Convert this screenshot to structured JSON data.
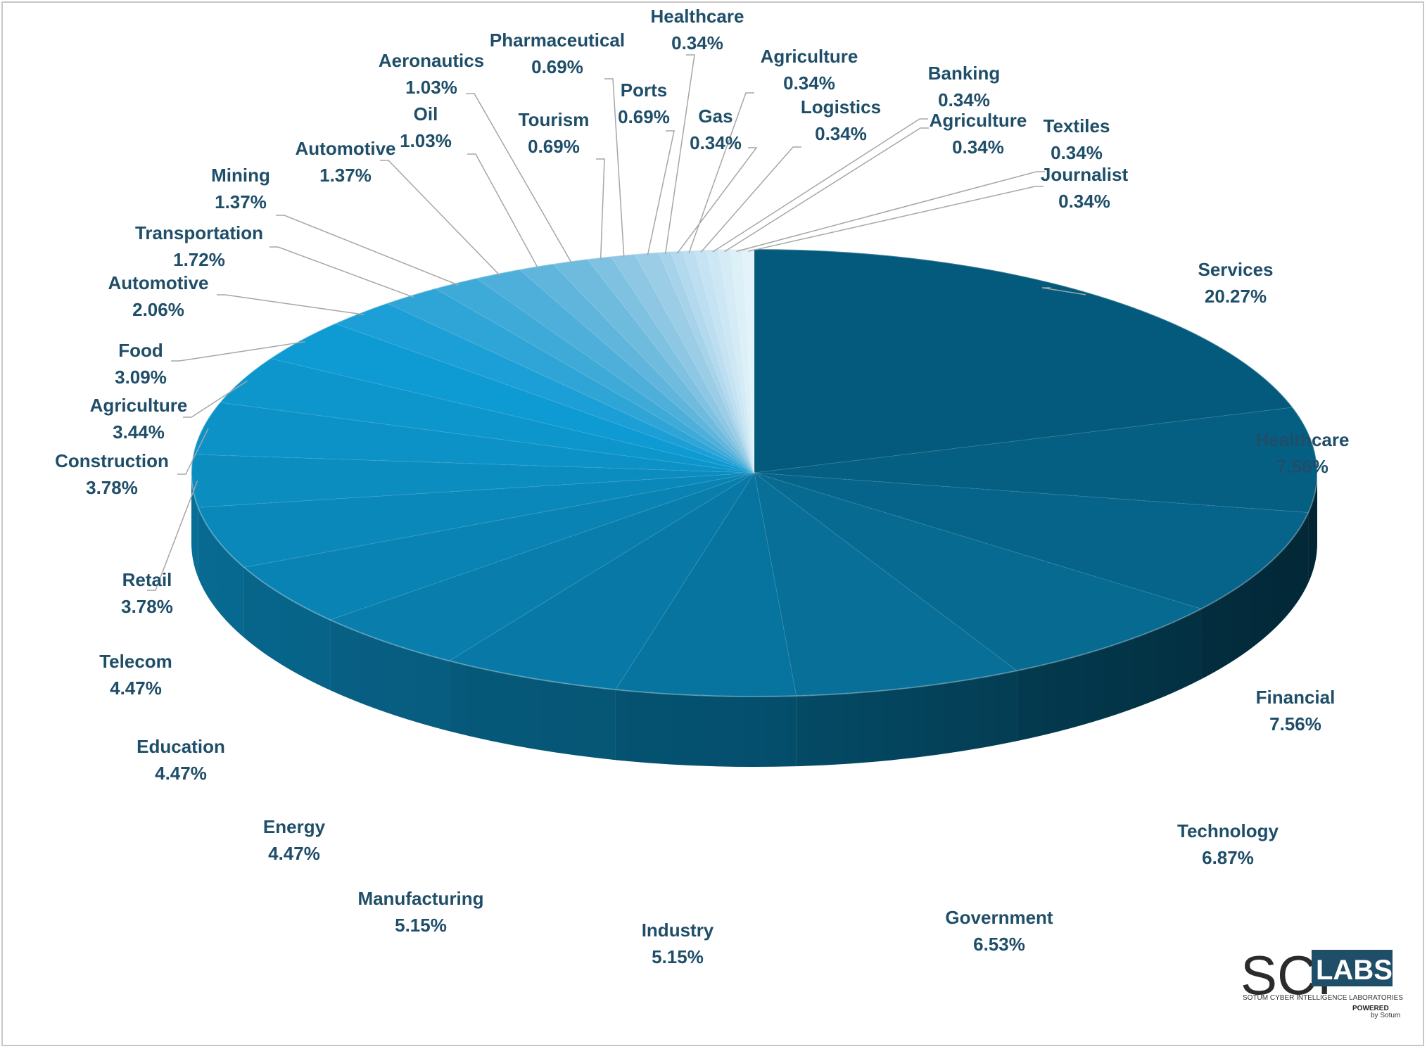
{
  "chart_data": {
    "type": "pie",
    "style": "3d",
    "legend": "none",
    "slices": [
      {
        "label": "Services",
        "value_text": "20.27%",
        "value": 20.27,
        "color": "#045a7c"
      },
      {
        "label": "Healthcare",
        "value_text": "7.56%",
        "value": 7.56,
        "color": "#055f83"
      },
      {
        "label": "Financial",
        "value_text": "7.56%",
        "value": 7.56,
        "color": "#06648a"
      },
      {
        "label": "Technology",
        "value_text": "6.87%",
        "value": 6.87,
        "color": "#066a91"
      },
      {
        "label": "Government",
        "value_text": "6.53%",
        "value": 6.53,
        "color": "#076f98"
      },
      {
        "label": "Industry",
        "value_text": "5.15%",
        "value": 5.15,
        "color": "#07749f"
      },
      {
        "label": "Manufacturing",
        "value_text": "5.15%",
        "value": 5.15,
        "color": "#0879a6"
      },
      {
        "label": "Energy",
        "value_text": "4.47%",
        "value": 4.47,
        "color": "#097ead"
      },
      {
        "label": "Education",
        "value_text": "4.47%",
        "value": 4.47,
        "color": "#0983b3"
      },
      {
        "label": "Telecom",
        "value_text": "4.47%",
        "value": 4.47,
        "color": "#0a88ba"
      },
      {
        "label": "Retail",
        "value_text": "3.78%",
        "value": 3.78,
        "color": "#0b8dc0"
      },
      {
        "label": "Construction",
        "value_text": "3.78%",
        "value": 3.78,
        "color": "#0c92c6"
      },
      {
        "label": "Agriculture",
        "value_text": "3.44%",
        "value": 3.44,
        "color": "#0d96cc"
      },
      {
        "label": "Food",
        "value_text": "3.09%",
        "value": 3.09,
        "color": "#0e9ad2"
      },
      {
        "label": "Automotive",
        "value_text": "2.06%",
        "value": 2.06,
        "color": "#1c9fd6"
      },
      {
        "label": "Transportation",
        "value_text": "1.72%",
        "value": 1.72,
        "color": "#2ea5d6"
      },
      {
        "label": "Mining",
        "value_text": "1.37%",
        "value": 1.37,
        "color": "#3eaad7"
      },
      {
        "label": "Automotive",
        "value_text": "1.37%",
        "value": 1.37,
        "color": "#4eafda"
      },
      {
        "label": "Oil",
        "value_text": "1.03%",
        "value": 1.03,
        "color": "#5fb5dc"
      },
      {
        "label": "Aeronautics",
        "value_text": "1.03%",
        "value": 1.03,
        "color": "#6fbbde"
      },
      {
        "label": "Tourism",
        "value_text": "0.69%",
        "value": 0.69,
        "color": "#7fc1e1"
      },
      {
        "label": "Pharmaceutical",
        "value_text": "0.69%",
        "value": 0.69,
        "color": "#8dc7e4"
      },
      {
        "label": "Ports",
        "value_text": "0.69%",
        "value": 0.69,
        "color": "#9bcde7"
      },
      {
        "label": "Healthcare",
        "value_text": "0.34%",
        "value": 0.34,
        "color": "#a7d3ea"
      },
      {
        "label": "Gas",
        "value_text": "0.34%",
        "value": 0.34,
        "color": "#b2d9ed"
      },
      {
        "label": "Agriculture",
        "value_text": "0.34%",
        "value": 0.34,
        "color": "#bcdef0"
      },
      {
        "label": "Logistics",
        "value_text": "0.34%",
        "value": 0.34,
        "color": "#c5e3f2"
      },
      {
        "label": "Banking",
        "value_text": "0.34%",
        "value": 0.34,
        "color": "#cde7f4"
      },
      {
        "label": "Agriculture",
        "value_text": "0.34%",
        "value": 0.34,
        "color": "#d5ebf6"
      },
      {
        "label": "Textiles",
        "value_text": "0.34%",
        "value": 0.34,
        "color": "#dcf0f8"
      },
      {
        "label": "Journalist",
        "value_text": "0.34%",
        "value": 0.34,
        "color": "#e4f3fa"
      }
    ]
  },
  "logo": {
    "sci": "SCI",
    "labs": "LABS",
    "subtitle": "SOTUM CYBER INTELLIGENCE LABORATORIES",
    "powered": "POWERED",
    "by": "by Sotum"
  }
}
